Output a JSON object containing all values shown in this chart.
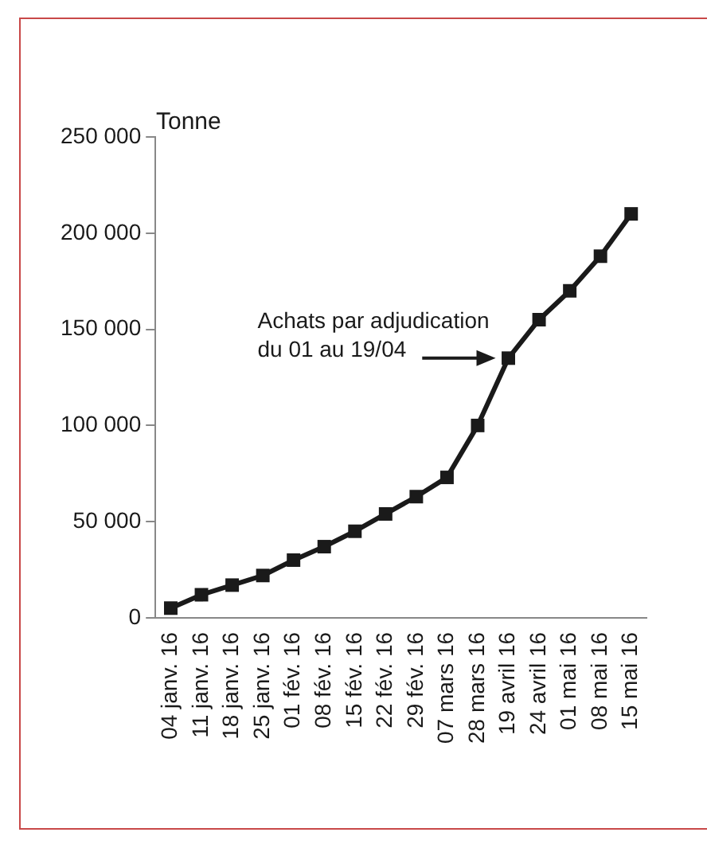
{
  "chart_data": {
    "type": "line",
    "ylabel": "Tonne",
    "categories": [
      "04 janv. 16",
      "11 janv. 16",
      "18 janv. 16",
      "25 janv. 16",
      "01 fév. 16",
      "08 fév. 16",
      "15 fév. 16",
      "22 fév. 16",
      "29 fév. 16",
      "07 mars 16",
      "28 mars 16",
      "19 avril 16",
      "24 avril 16",
      "01 mai 16",
      "08 mai 16",
      "15 mai 16"
    ],
    "series": [
      {
        "color": "#1a1a1a",
        "values": [
          5000,
          12000,
          17000,
          22000,
          30000,
          37000,
          45000,
          54000,
          63000,
          73000,
          100000,
          135000,
          155000,
          170000,
          188000,
          210000
        ]
      }
    ],
    "ylim": [
      0,
      250000
    ],
    "yticks": [
      {
        "value": 0,
        "label": "0"
      },
      {
        "value": 50000,
        "label": "50 000"
      },
      {
        "value": 100000,
        "label": "100 000"
      },
      {
        "value": 150000,
        "label": "150 000"
      },
      {
        "value": 200000,
        "label": "200 000"
      },
      {
        "value": 250000,
        "label": "250 000"
      }
    ],
    "annotations": [
      {
        "text": "Achats par adjudication\ndu 01 au 19/04",
        "x": "19 avril 16",
        "y": 135000
      }
    ],
    "grid": false,
    "legend": false,
    "marker": "square",
    "line_style": "solid"
  }
}
